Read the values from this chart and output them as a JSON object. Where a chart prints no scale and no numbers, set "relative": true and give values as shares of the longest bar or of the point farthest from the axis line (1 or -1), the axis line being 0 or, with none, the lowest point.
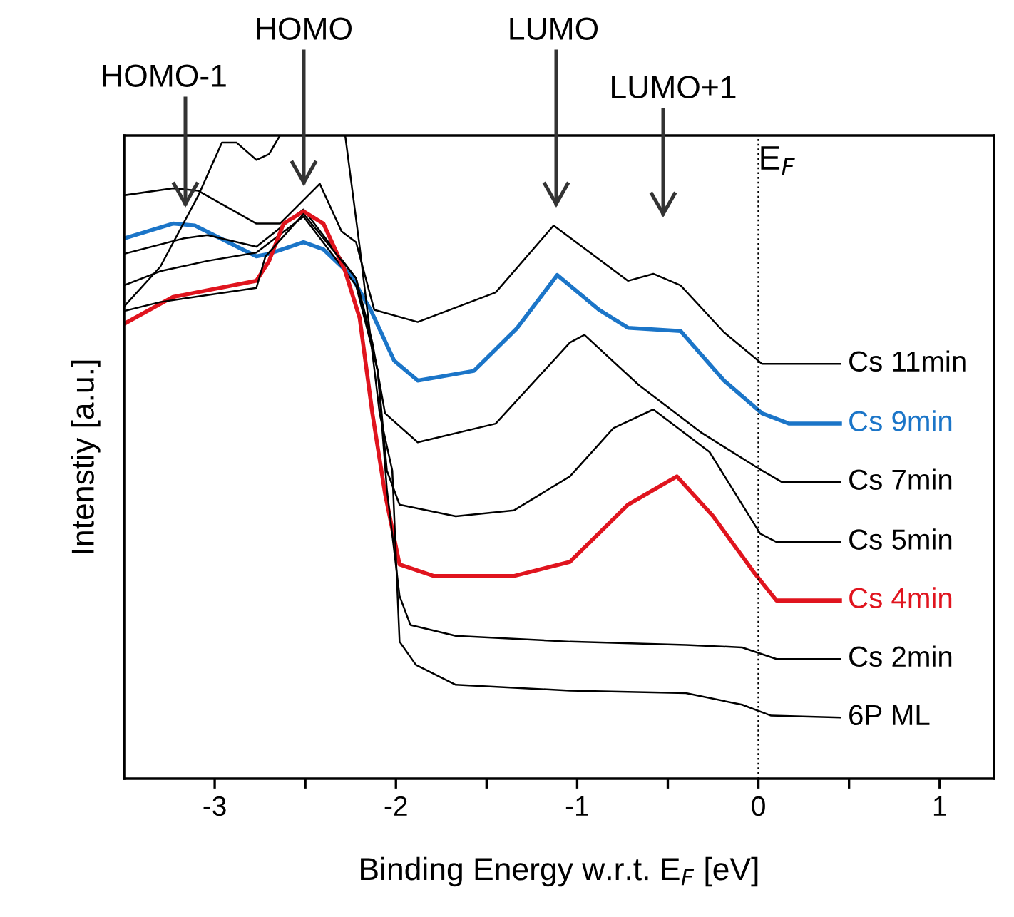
{
  "chart_data": {
    "type": "line",
    "relative": true,
    "xlabel": "Binding Energy w.r.t. E$_{F}$ [eV]",
    "ylabel": "Intenstiy [a.u.]",
    "xlim": [
      -3.5,
      1.3
    ],
    "xticks": [
      -3,
      {
        "value": -2.5,
        "label": null
      },
      -2,
      {
        "value": -1.5,
        "label": null
      },
      -1,
      {
        "value": -0.5,
        "label": null
      },
      0,
      {
        "value": 0.5,
        "label": null
      },
      1
    ],
    "legend": false,
    "grid": false,
    "marker": "none",
    "line_style": "solid",
    "series": [
      {
        "name": "Cs 11min",
        "color": "#000000",
        "x": [
          -3.5,
          -3.23,
          -3.09,
          -2.77,
          -2.64,
          -2.42,
          -2.3,
          -2.22,
          -2.12,
          -1.88,
          -1.45,
          -1.13,
          -0.72,
          -0.58,
          -0.43,
          -0.19,
          0.02,
          0.45
        ],
        "values": [
          0.907,
          0.918,
          0.914,
          0.863,
          0.863,
          0.925,
          0.851,
          0.834,
          0.729,
          0.71,
          0.756,
          0.86,
          0.774,
          0.785,
          0.767,
          0.694,
          0.645,
          0.645
        ]
      },
      {
        "name": "Cs 9min",
        "color": "#1b75c8",
        "x": [
          -3.5,
          -3.23,
          -3.11,
          -2.77,
          -2.7,
          -2.51,
          -2.4,
          -2.25,
          -2.14,
          -2.01,
          -1.88,
          -1.57,
          -1.33,
          -1.11,
          -0.88,
          -0.72,
          -0.43,
          -0.19,
          0.02,
          0.17,
          0.45
        ],
        "values": [
          0.84,
          0.863,
          0.86,
          0.812,
          0.816,
          0.834,
          0.823,
          0.783,
          0.729,
          0.65,
          0.619,
          0.634,
          0.701,
          0.783,
          0.729,
          0.701,
          0.696,
          0.619,
          0.568,
          0.552,
          0.552
        ]
      },
      {
        "name": "Cs 7min",
        "color": "#000000",
        "x": [
          -3.5,
          -3.17,
          -3.04,
          -2.77,
          -2.51,
          -2.22,
          -2.13,
          -2.06,
          -1.88,
          -1.45,
          -1.04,
          -0.96,
          -0.66,
          -0.32,
          0.02,
          0.13,
          0.45
        ],
        "values": [
          0.816,
          0.84,
          0.845,
          0.827,
          0.885,
          0.778,
          0.678,
          0.568,
          0.523,
          0.552,
          0.678,
          0.69,
          0.612,
          0.539,
          0.479,
          0.461,
          0.461
        ]
      },
      {
        "name": "Cs 5min",
        "color": "#000000",
        "x": [
          -3.5,
          -3.3,
          -3.04,
          -2.77,
          -2.51,
          -2.22,
          -2.1,
          -2.05,
          -1.98,
          -1.67,
          -1.35,
          -1.04,
          -0.8,
          -0.58,
          -0.27,
          0.01,
          0.1,
          0.45
        ],
        "values": [
          0.767,
          0.789,
          0.805,
          0.818,
          0.874,
          0.767,
          0.634,
          0.479,
          0.426,
          0.408,
          0.417,
          0.47,
          0.545,
          0.574,
          0.508,
          0.381,
          0.368,
          0.368
        ]
      },
      {
        "name": "Cs 4min",
        "color": "#e0141e",
        "x": [
          -3.5,
          -3.23,
          -2.77,
          -2.7,
          -2.62,
          -2.51,
          -2.4,
          -2.28,
          -2.2,
          -2.13,
          -2.06,
          -1.98,
          -1.79,
          -1.35,
          -1.04,
          -0.72,
          -0.45,
          -0.25,
          -0.02,
          0.1,
          0.45
        ],
        "values": [
          0.707,
          0.749,
          0.774,
          0.805,
          0.863,
          0.882,
          0.863,
          0.789,
          0.716,
          0.568,
          0.443,
          0.333,
          0.315,
          0.315,
          0.337,
          0.426,
          0.47,
          0.408,
          0.319,
          0.277,
          0.277
        ]
      },
      {
        "name": "Cs 2min",
        "color": "#000000",
        "x": [
          -3.5,
          -3.3,
          -2.77,
          -2.72,
          -2.51,
          -2.22,
          -2.1,
          -2.05,
          -1.98,
          -1.92,
          -1.67,
          -1.04,
          -0.4,
          -0.09,
          0.1,
          0.45
        ],
        "values": [
          0.727,
          0.741,
          0.763,
          0.812,
          0.878,
          0.778,
          0.634,
          0.45,
          0.284,
          0.239,
          0.222,
          0.213,
          0.208,
          0.204,
          0.186,
          0.186
        ]
      },
      {
        "name": "6P ML",
        "color": "#000000",
        "x": [
          -3.5,
          -3.3,
          -3.09,
          -2.96,
          -2.88,
          -2.77,
          -2.7,
          -2.64,
          -2.46,
          -2.28,
          -2.2,
          -2.09,
          -2.02,
          -1.98,
          -1.89,
          -1.67,
          -1.04,
          -0.4,
          -0.09,
          0.07,
          0.45
        ],
        "values": [
          0.734,
          0.796,
          0.907,
          0.989,
          0.989,
          0.962,
          0.971,
          1.0,
          null,
          1.0,
          0.827,
          0.568,
          0.479,
          0.213,
          0.177,
          0.146,
          0.137,
          0.133,
          0.115,
          0.098,
          0.095
        ]
      }
    ],
    "ref_lines": [
      {
        "axis": "x",
        "value": 0,
        "label": "E$_{F}$",
        "line_style": "dotted",
        "color": "#000000"
      }
    ],
    "annotations": [
      "HOMO-1",
      "HOMO",
      "LUMO",
      "LUMO+1"
    ]
  }
}
